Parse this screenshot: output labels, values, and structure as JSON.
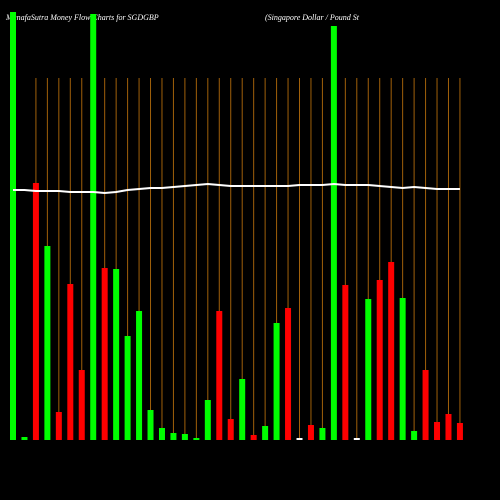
{
  "chart_data": {
    "type": "bar",
    "title": "MunafaSutra  Money Flow  Charts for SGDGBP",
    "subtitle": "(Singapore   Dollar / Pound St",
    "values": [
      428,
      3,
      257,
      194,
      28,
      156,
      70,
      426,
      172,
      171,
      104,
      129,
      30,
      12,
      7,
      6,
      2,
      40,
      129,
      21,
      61,
      5,
      14,
      117,
      132,
      2,
      15,
      12,
      414,
      155,
      2,
      141,
      160,
      178,
      142,
      9,
      70,
      18,
      26,
      17
    ],
    "colors": [
      "#00ff00",
      "#00ff00",
      "#ff0000",
      "#00ff00",
      "#ff0000",
      "#ff0000",
      "#ff0000",
      "#00ff00",
      "#ff0000",
      "#00ff00",
      "#00ff00",
      "#00ff00",
      "#00ff00",
      "#00ff00",
      "#00ff00",
      "#00ff00",
      "#00ff00",
      "#00ff00",
      "#ff0000",
      "#ff0000",
      "#00ff00",
      "#ff0000",
      "#00ff00",
      "#00ff00",
      "#ff0000",
      "#ffffff",
      "#ff0000",
      "#00ff00",
      "#00ff00",
      "#ff0000",
      "#ffffff",
      "#00ff00",
      "#ff0000",
      "#ff0000",
      "#00ff00",
      "#00ff00",
      "#ff0000",
      "#ff0000",
      "#ff0000",
      "#ff0000"
    ],
    "line": {
      "color": "#ffffff",
      "values": [
        250,
        250,
        249,
        249,
        249,
        248,
        248,
        248,
        247,
        248,
        250,
        251,
        252,
        252,
        253,
        254,
        255,
        256,
        255,
        254,
        254,
        254,
        254,
        254,
        254,
        255,
        255,
        255,
        256,
        255,
        255,
        255,
        254,
        253,
        252,
        253,
        252,
        251,
        251,
        251
      ]
    },
    "ylim": [
      0,
      440
    ],
    "grid": true,
    "grid_color": "#a0600a"
  }
}
